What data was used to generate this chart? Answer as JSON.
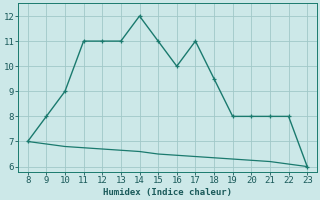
{
  "x_main": [
    8,
    9,
    10,
    11,
    12,
    13,
    14,
    15,
    16,
    17,
    18,
    19,
    20,
    21,
    22,
    23
  ],
  "y_main": [
    7,
    8,
    9,
    11,
    11,
    11,
    12,
    11,
    10,
    11,
    9.5,
    8,
    8,
    8,
    8,
    6
  ],
  "x_sec": [
    8,
    9,
    10,
    11,
    12,
    13,
    14,
    15,
    16,
    17,
    18,
    19,
    20,
    21,
    22,
    23
  ],
  "y_sec": [
    7.0,
    6.9,
    6.8,
    6.75,
    6.7,
    6.65,
    6.6,
    6.5,
    6.45,
    6.4,
    6.35,
    6.3,
    6.25,
    6.2,
    6.1,
    6.0
  ],
  "line_color": "#1a7a6e",
  "bg_color": "#cce8e8",
  "grid_color": "#a0c8c8",
  "xlabel": "Humidex (Indice chaleur)",
  "xlim": [
    7.5,
    23.5
  ],
  "ylim": [
    5.8,
    12.5
  ],
  "xticks": [
    8,
    9,
    10,
    11,
    12,
    13,
    14,
    15,
    16,
    17,
    18,
    19,
    20,
    21,
    22,
    23
  ],
  "yticks": [
    6,
    7,
    8,
    9,
    10,
    11,
    12
  ]
}
